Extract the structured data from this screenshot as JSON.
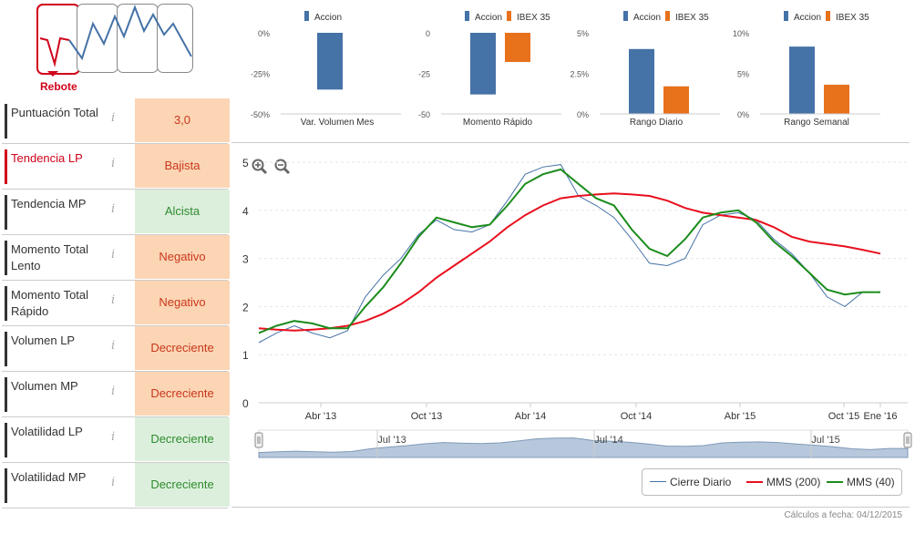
{
  "pattern": {
    "label": "Rebote"
  },
  "indicators": [
    {
      "label": "Puntuación Total",
      "value": "3,0",
      "style": "orange",
      "red": false
    },
    {
      "label": "Tendencia LP",
      "value": "Bajista",
      "style": "orange",
      "red": true
    },
    {
      "label": "Tendencia MP",
      "value": "Alcista",
      "style": "green",
      "red": false
    },
    {
      "label": "Momento Total Lento",
      "value": "Negativo",
      "style": "orange",
      "red": false
    },
    {
      "label": "Momento Total Rápido",
      "value": "Negativo",
      "style": "orange",
      "red": false
    },
    {
      "label": "Volumen LP",
      "value": "Decreciente",
      "style": "orange",
      "red": false
    },
    {
      "label": "Volumen MP",
      "value": "Decreciente",
      "style": "orange",
      "red": false
    },
    {
      "label": "Volatilidad LP",
      "value": "Decreciente",
      "style": "green",
      "red": false
    },
    {
      "label": "Volatilidad MP",
      "value": "Decreciente",
      "style": "green",
      "red": false
    }
  ],
  "info_glyph": "i",
  "footer": "Cálculos a fecha: 04/12/2015",
  "colors": {
    "accion": "#4572a7",
    "ibex": "#e8711c",
    "cierre": "#4572a7",
    "mms200": "#e8101e",
    "mms40": "#1c8c1c"
  },
  "chart_data": [
    {
      "type": "bar",
      "title": "Var. Volumen Mes",
      "legend": [
        "Accion"
      ],
      "series": [
        {
          "name": "Accion",
          "values": [
            -35
          ]
        }
      ],
      "yticks": [
        "0%",
        "-25%",
        "-50%"
      ],
      "ylim": [
        -50,
        0
      ]
    },
    {
      "type": "bar",
      "title": "Momento Rápido",
      "legend": [
        "Accion",
        "IBEX 35"
      ],
      "series": [
        {
          "name": "Accion",
          "values": [
            -38
          ]
        },
        {
          "name": "IBEX 35",
          "values": [
            -18
          ]
        }
      ],
      "yticks": [
        "0",
        "-25",
        "-50"
      ],
      "ylim": [
        -50,
        0
      ]
    },
    {
      "type": "bar",
      "title": "Rango Diario",
      "legend": [
        "Accion",
        "IBEX 35"
      ],
      "series": [
        {
          "name": "Accion",
          "values": [
            4.0
          ]
        },
        {
          "name": "IBEX 35",
          "values": [
            1.7
          ]
        }
      ],
      "yticks": [
        "5%",
        "2.5%",
        "0%"
      ],
      "ylim": [
        0,
        5
      ]
    },
    {
      "type": "bar",
      "title": "Rango Semanal",
      "legend": [
        "Accion",
        "IBEX 35"
      ],
      "series": [
        {
          "name": "Accion",
          "values": [
            8.3
          ]
        },
        {
          "name": "IBEX 35",
          "values": [
            3.6
          ]
        }
      ],
      "yticks": [
        "10%",
        "5%",
        "0%"
      ],
      "ylim": [
        0,
        10
      ]
    },
    {
      "type": "line",
      "ylim": [
        0,
        5
      ],
      "yticks": [
        "0",
        "1",
        "2",
        "3",
        "4",
        "5"
      ],
      "xticks": [
        "Abr '13",
        "Oct '13",
        "Abr '14",
        "Oct '14",
        "Abr '15",
        "Oct '15",
        "Ene '16"
      ],
      "navigator_ticks": [
        "Jul '13",
        "Jul '14",
        "Jul '15"
      ],
      "x": [
        "Ene '13",
        "Feb '13",
        "Mar '13",
        "Abr '13",
        "May '13",
        "Jun '13",
        "Jul '13",
        "Ago '13",
        "Sep '13",
        "Oct '13",
        "Nov '13",
        "Dic '13",
        "Ene '14",
        "Feb '14",
        "Mar '14",
        "Abr '14",
        "May '14",
        "Jun '14",
        "Jul '14",
        "Ago '14",
        "Sep '14",
        "Oct '14",
        "Nov '14",
        "Dic '14",
        "Ene '15",
        "Feb '15",
        "Mar '15",
        "Abr '15",
        "May '15",
        "Jun '15",
        "Jul '15",
        "Ago '15",
        "Sep '15",
        "Oct '15",
        "Nov '15",
        "Dic '15"
      ],
      "series": [
        {
          "name": "Cierre Diario",
          "values": [
            1.25,
            1.45,
            1.6,
            1.45,
            1.35,
            1.5,
            2.2,
            2.65,
            3.0,
            3.5,
            3.8,
            3.6,
            3.55,
            3.7,
            4.2,
            4.75,
            4.9,
            4.95,
            4.3,
            4.1,
            3.85,
            3.4,
            2.9,
            2.85,
            3.0,
            3.7,
            3.9,
            3.95,
            3.8,
            3.4,
            3.1,
            2.7,
            2.2,
            2.0,
            2.3,
            2.3
          ]
        },
        {
          "name": "MMS (200)",
          "values": [
            1.55,
            1.52,
            1.5,
            1.52,
            1.55,
            1.6,
            1.7,
            1.85,
            2.05,
            2.3,
            2.6,
            2.85,
            3.1,
            3.35,
            3.65,
            3.9,
            4.1,
            4.25,
            4.3,
            4.33,
            4.35,
            4.33,
            4.3,
            4.2,
            4.05,
            3.95,
            3.9,
            3.85,
            3.8,
            3.65,
            3.45,
            3.35,
            3.3,
            3.25,
            3.18,
            3.1
          ]
        },
        {
          "name": "MMS (40)",
          "values": [
            1.45,
            1.6,
            1.7,
            1.65,
            1.55,
            1.55,
            2.0,
            2.4,
            2.9,
            3.45,
            3.85,
            3.75,
            3.65,
            3.7,
            4.1,
            4.55,
            4.75,
            4.85,
            4.55,
            4.25,
            4.1,
            3.6,
            3.2,
            3.05,
            3.4,
            3.85,
            3.95,
            4.0,
            3.75,
            3.35,
            3.05,
            2.7,
            2.35,
            2.25,
            2.3,
            2.3
          ]
        }
      ]
    }
  ]
}
